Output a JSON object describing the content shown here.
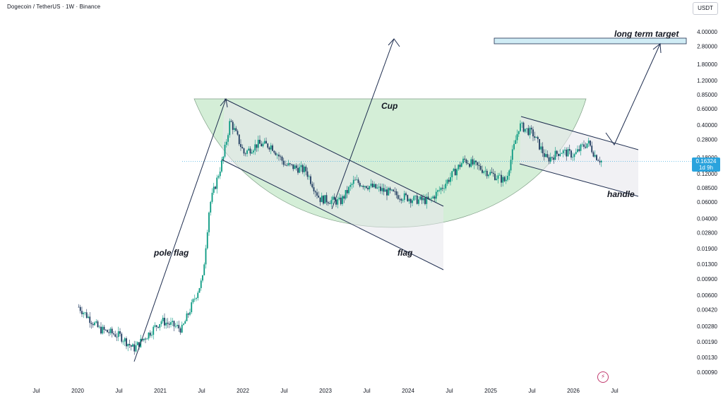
{
  "header": {
    "symbol_title": "Dogecoin / TetherUS · 1W · Binance",
    "currency": "USDT"
  },
  "price_tag": {
    "price": "0.16324",
    "countdown": "1d 9h"
  },
  "colors": {
    "up": "#089981",
    "down": "#1e3a5f",
    "cup_fill": "#c5e8c9",
    "price_line": "#2aa3dd",
    "drawing_line": "#1e2d4f",
    "target_box": "#d0ecf5"
  },
  "icons": {
    "bolt_badge": "lightning-icon"
  },
  "annotations": {
    "cup": "Cup",
    "flag": "flag",
    "pole_flag": "pole flag",
    "handle": "handle",
    "long_term_target": "long term target"
  },
  "chart_data": {
    "type": "candlestick",
    "title": "Dogecoin / TetherUS · 1W · Binance",
    "y_scale": "log",
    "y_ticks": [
      "4.00000",
      "2.80000",
      "1.80000",
      "1.20000",
      "0.85000",
      "0.60000",
      "0.40000",
      "0.28000",
      "0.18000",
      "0.12000",
      "0.08500",
      "0.06000",
      "0.04000",
      "0.02800",
      "0.01900",
      "0.01300",
      "0.00900",
      "0.00600",
      "0.00420",
      "0.00280",
      "0.00190",
      "0.00130",
      "0.00090"
    ],
    "x_ticks": [
      "Jul",
      "2020",
      "Jul",
      "2021",
      "Jul",
      "2022",
      "Jul",
      "2023",
      "Jul",
      "2024",
      "Jul",
      "2025",
      "Jul",
      "2026",
      "Jul"
    ],
    "last_price": 0.16324,
    "approx_close_path": [
      [
        "2019-07",
        0.0045
      ],
      [
        "2019-10",
        0.0026
      ],
      [
        "2020-01",
        0.0022
      ],
      [
        "2020-03",
        0.0016
      ],
      [
        "2020-07",
        0.0032
      ],
      [
        "2020-10",
        0.0026
      ],
      [
        "2021-01",
        0.009
      ],
      [
        "2021-02",
        0.055
      ],
      [
        "2021-04",
        0.18
      ],
      [
        "2021-05",
        0.45
      ],
      [
        "2021-07",
        0.2
      ],
      [
        "2021-09",
        0.25
      ],
      [
        "2021-11",
        0.24
      ],
      [
        "2022-01",
        0.15
      ],
      [
        "2022-04",
        0.13
      ],
      [
        "2022-06",
        0.065
      ],
      [
        "2022-09",
        0.06
      ],
      [
        "2022-11",
        0.1
      ],
      [
        "2023-02",
        0.085
      ],
      [
        "2023-05",
        0.072
      ],
      [
        "2023-08",
        0.063
      ],
      [
        "2023-10",
        0.062
      ],
      [
        "2023-12",
        0.09
      ],
      [
        "2024-03",
        0.17
      ],
      [
        "2024-06",
        0.13
      ],
      [
        "2024-09",
        0.1
      ],
      [
        "2024-11",
        0.4
      ],
      [
        "2025-01",
        0.32
      ],
      [
        "2025-03",
        0.17
      ],
      [
        "2025-05",
        0.21
      ],
      [
        "2025-07",
        0.19
      ],
      [
        "2025-08",
        0.23
      ],
      [
        "2025-09",
        0.26
      ],
      [
        "2025-10",
        0.19
      ],
      [
        "2025-11",
        0.16324
      ]
    ]
  }
}
